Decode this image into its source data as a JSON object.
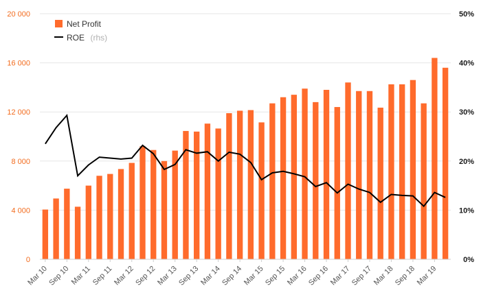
{
  "colors": {
    "bar": "#ff6b2c",
    "line": "#000000",
    "left_axis_text": "#f26b1d",
    "right_axis_text": "#1a1a1a"
  },
  "legend": {
    "position": "top-left",
    "items": [
      {
        "label": "Net Profit",
        "suffix": "",
        "marker": "square"
      },
      {
        "label": "ROE",
        "suffix": "(rhs)",
        "marker": "line"
      }
    ]
  },
  "chart_data": {
    "type": "bar",
    "title": "",
    "xlabel": "",
    "ylabel": "",
    "ylim": [
      0,
      20000
    ],
    "y2lim": [
      0,
      50
    ],
    "grid": true,
    "left_ticks": [
      "0",
      "4 000",
      "8 000",
      "12 000",
      "16 000",
      "20 000"
    ],
    "left_tick_values": [
      0,
      4000,
      8000,
      12000,
      16000,
      20000
    ],
    "right_ticks": [
      "0%",
      "10%",
      "20%",
      "30%",
      "40%",
      "50%"
    ],
    "right_tick_values": [
      0,
      10,
      20,
      30,
      40,
      50
    ],
    "x_labels": [
      {
        "index": 0,
        "text": "Mar 10"
      },
      {
        "index": 2,
        "text": "Sep 10"
      },
      {
        "index": 4,
        "text": "Mar 11"
      },
      {
        "index": 6,
        "text": "Sep 11"
      },
      {
        "index": 8,
        "text": "Mar 12"
      },
      {
        "index": 10,
        "text": "Sep 12"
      },
      {
        "index": 12,
        "text": "Mar 13"
      },
      {
        "index": 14,
        "text": "Sep 13"
      },
      {
        "index": 16,
        "text": "Mar 14"
      },
      {
        "index": 18,
        "text": "Sep 14"
      },
      {
        "index": 20,
        "text": "Mar 15"
      },
      {
        "index": 22,
        "text": "Sep 15"
      },
      {
        "index": 24,
        "text": "Mar 16"
      },
      {
        "index": 26,
        "text": "Sep 16"
      },
      {
        "index": 28,
        "text": "Mar 17"
      },
      {
        "index": 30,
        "text": "Sep 17"
      },
      {
        "index": 32,
        "text": "Mar 18"
      },
      {
        "index": 34,
        "text": "Sep 18"
      },
      {
        "index": 36,
        "text": "Mar 19"
      }
    ],
    "series": [
      {
        "name": "Net Profit",
        "type": "bar",
        "axis": "left",
        "values": [
          4050,
          4950,
          5750,
          4280,
          6000,
          6800,
          6950,
          7350,
          7850,
          9200,
          8900,
          8000,
          8850,
          10450,
          10400,
          11050,
          10650,
          11900,
          12100,
          12150,
          11150,
          12700,
          13200,
          13400,
          13900,
          12800,
          13800,
          12400,
          14400,
          13700,
          13700,
          12350,
          14250,
          14250,
          14600,
          12700,
          16400,
          15600
        ]
      },
      {
        "name": "ROE",
        "type": "line",
        "axis": "right",
        "values": [
          23.5,
          26.8,
          29.3,
          17.0,
          19.2,
          20.8,
          20.6,
          20.4,
          20.6,
          23.2,
          21.5,
          18.3,
          19.3,
          22.3,
          21.6,
          21.9,
          20.0,
          21.8,
          21.4,
          19.7,
          16.2,
          17.6,
          17.9,
          17.4,
          16.8,
          14.8,
          15.6,
          13.5,
          15.3,
          14.3,
          13.6,
          11.6,
          13.2,
          13.0,
          12.9,
          10.8,
          13.6,
          12.6
        ]
      }
    ]
  }
}
